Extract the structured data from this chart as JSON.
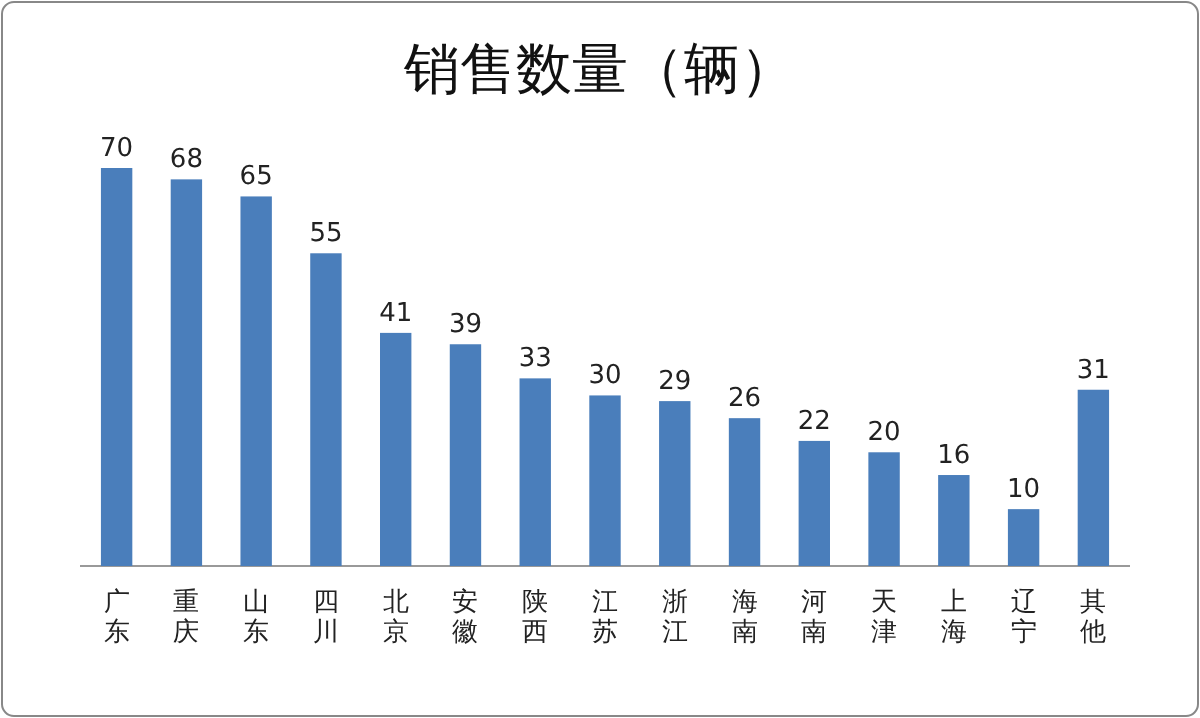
{
  "chart_data": {
    "type": "bar",
    "title": "销售数量（辆）",
    "categories": [
      "广东",
      "重庆",
      "山东",
      "四川",
      "北京",
      "安徽",
      "陕西",
      "江苏",
      "浙江",
      "海南",
      "河南",
      "天津",
      "上海",
      "辽宁",
      "其他"
    ],
    "values": [
      70,
      68,
      65,
      55,
      41,
      39,
      33,
      30,
      29,
      26,
      22,
      20,
      16,
      10,
      31
    ],
    "color": "#4a7ebb",
    "data_labels": true
  }
}
